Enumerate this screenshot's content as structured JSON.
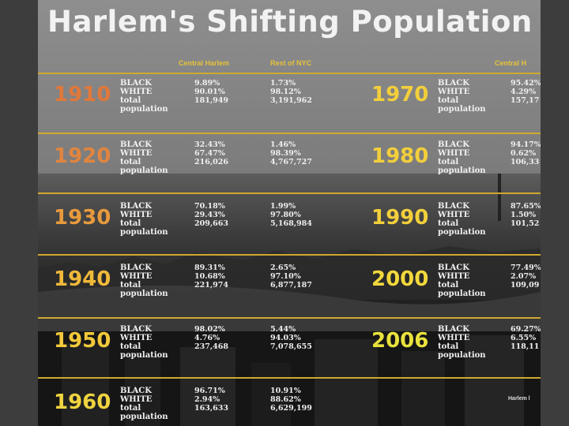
{
  "title": "Harlem's Shifting Population",
  "columns": {
    "central": "Central Harlem",
    "rest": "Rest of NYC",
    "right_central": "Central H"
  },
  "labels": {
    "black": "BLACK",
    "white": "WHITE",
    "total": "total",
    "population": "population"
  },
  "left_rows": [
    {
      "year": "1910",
      "year_color": "#e0783a",
      "central": [
        "9.89%",
        "90.01%",
        "181,949"
      ],
      "rest": [
        "1.73%",
        "98.12%",
        "3,191,962"
      ]
    },
    {
      "year": "1920",
      "year_color": "#e0853f",
      "central": [
        "32.43%",
        "67.47%",
        "216,026"
      ],
      "rest": [
        "1.46%",
        "98.39%",
        "4,767,727"
      ]
    },
    {
      "year": "1930",
      "year_color": "#e89a3c",
      "central": [
        "70.18%",
        "29.43%",
        "209,663"
      ],
      "rest": [
        "1.99%",
        "97.80%",
        "5,168,984"
      ]
    },
    {
      "year": "1940",
      "year_color": "#f0b93a",
      "central": [
        "89.31%",
        "10.68%",
        "221,974"
      ],
      "rest": [
        "2.65%",
        "97.10%",
        "6,877,187"
      ]
    },
    {
      "year": "1950",
      "year_color": "#f2c93a",
      "central": [
        "98.02%",
        "4.76%",
        "237,468"
      ],
      "rest": [
        "5.44%",
        "94.03%",
        "7,078,655"
      ]
    },
    {
      "year": "1960",
      "year_color": "#efd340",
      "central": [
        "96.71%",
        "2.94%",
        "163,633"
      ],
      "rest": [
        "10.91%",
        "88.62%",
        "6,629,199"
      ]
    }
  ],
  "right_rows": [
    {
      "year": "1970",
      "year_color": "#f2cf3b",
      "central": [
        "95.42%",
        "4.29%",
        "157,17"
      ]
    },
    {
      "year": "1980",
      "year_color": "#f2cf3b",
      "central": [
        "94.17%",
        "0.62%",
        "106,33"
      ]
    },
    {
      "year": "1990",
      "year_color": "#f2cf3b",
      "central": [
        "87.65%",
        "1.50%",
        "101,52"
      ]
    },
    {
      "year": "2000",
      "year_color": "#f2d83c",
      "central": [
        "77.49%",
        "2.07%",
        "109,09"
      ]
    },
    {
      "year": "2006",
      "year_color": "#e9e23e",
      "central": [
        "69.27%",
        "6.55%",
        "118,11"
      ]
    }
  ],
  "credit": "Harlem l"
}
